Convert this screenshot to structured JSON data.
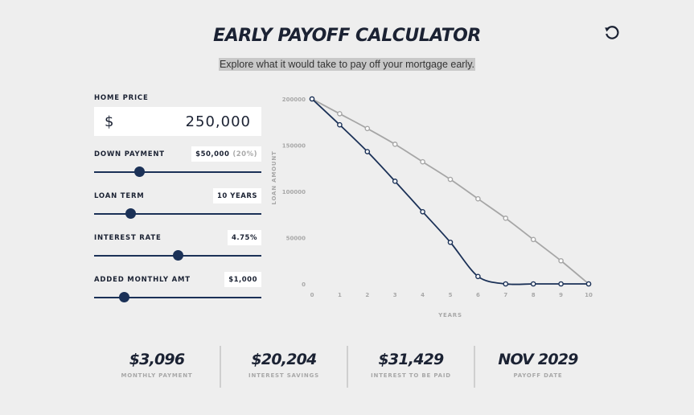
{
  "header": {
    "title": "EARLY PAYOFF CALCULATOR",
    "subtitle": "Explore what it would take to pay off your mortgage early.",
    "reset_icon": "reset-icon"
  },
  "inputs": {
    "home_price": {
      "label": "HOME PRICE",
      "currency": "$",
      "value": "250,000"
    },
    "down_payment": {
      "label": "DOWN PAYMENT",
      "value": "$50,000",
      "percent": "(20%)",
      "slider": 0.27
    },
    "loan_term": {
      "label": "LOAN TERM",
      "value": "10 YEARS",
      "slider": 0.22
    },
    "interest_rate": {
      "label": "INTEREST RATE",
      "value": "4.75%",
      "slider": 0.5
    },
    "added_monthly": {
      "label": "ADDED MONTHLY AMT",
      "value": "$1,000",
      "slider": 0.18
    }
  },
  "colors": {
    "navy": "#1b3157",
    "gray_series": "#a6a6a6"
  },
  "chart_data": {
    "type": "line",
    "xlabel": "YEARS",
    "ylabel": "LOAN AMOUNT",
    "x": [
      0,
      1,
      2,
      3,
      4,
      5,
      6,
      7,
      8,
      9,
      10
    ],
    "x_ticks": [
      "0",
      "1",
      "2",
      "3",
      "4",
      "5",
      "6",
      "7",
      "8",
      "9",
      "10"
    ],
    "y_ticks": [
      "200000",
      "150000",
      "100000",
      "50000",
      "0"
    ],
    "ylim": [
      0,
      200000
    ],
    "grid": false,
    "series": [
      {
        "color": "#a6a6a6",
        "values": [
          200000,
          184000,
          168000,
          151000,
          132000,
          113000,
          92000,
          71000,
          48000,
          25000,
          0
        ]
      },
      {
        "color": "#1b3157",
        "values": [
          200000,
          172000,
          143000,
          111000,
          78000,
          45000,
          8000,
          0,
          0,
          0,
          0
        ]
      }
    ]
  },
  "stats": [
    {
      "value": "$3,096",
      "label": "MONTHLY PAYMENT"
    },
    {
      "value": "$20,204",
      "label": "INTEREST SAVINGS"
    },
    {
      "value": "$31,429",
      "label": "INTEREST TO BE PAID"
    },
    {
      "value": "NOV 2029",
      "label": "PAYOFF DATE"
    }
  ]
}
